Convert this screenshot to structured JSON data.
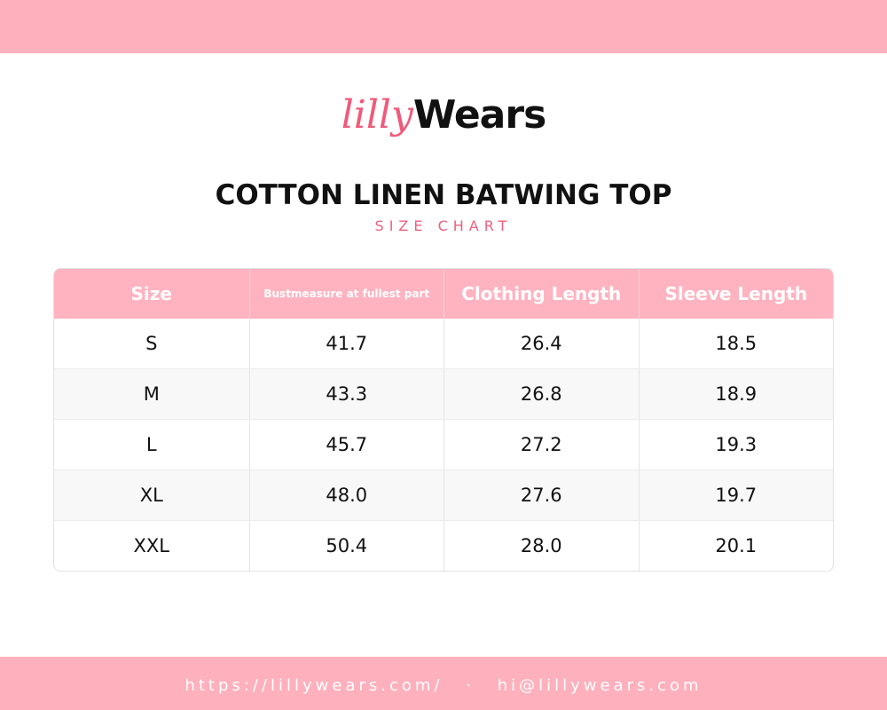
{
  "brand": {
    "script_part": "lilly",
    "bold_part": "Wears"
  },
  "header": {
    "title": "COTTON LINEN BATWING TOP",
    "subtitle": "SIZE CHART"
  },
  "table": {
    "columns": [
      "Size",
      "Bustmeasure at fullest part",
      "Clothing Length",
      "Sleeve Length"
    ],
    "rows": [
      [
        "S",
        "41.7",
        "26.4",
        "18.5"
      ],
      [
        "M",
        "43.3",
        "26.8",
        "18.9"
      ],
      [
        "L",
        "45.7",
        "27.2",
        "19.3"
      ],
      [
        "XL",
        "48.0",
        "27.6",
        "19.7"
      ],
      [
        "XXL",
        "50.4",
        "28.0",
        "20.1"
      ]
    ]
  },
  "footer": {
    "website": "https://lillywears.com/",
    "separator": "·",
    "email": "hi@lillywears.com"
  }
}
